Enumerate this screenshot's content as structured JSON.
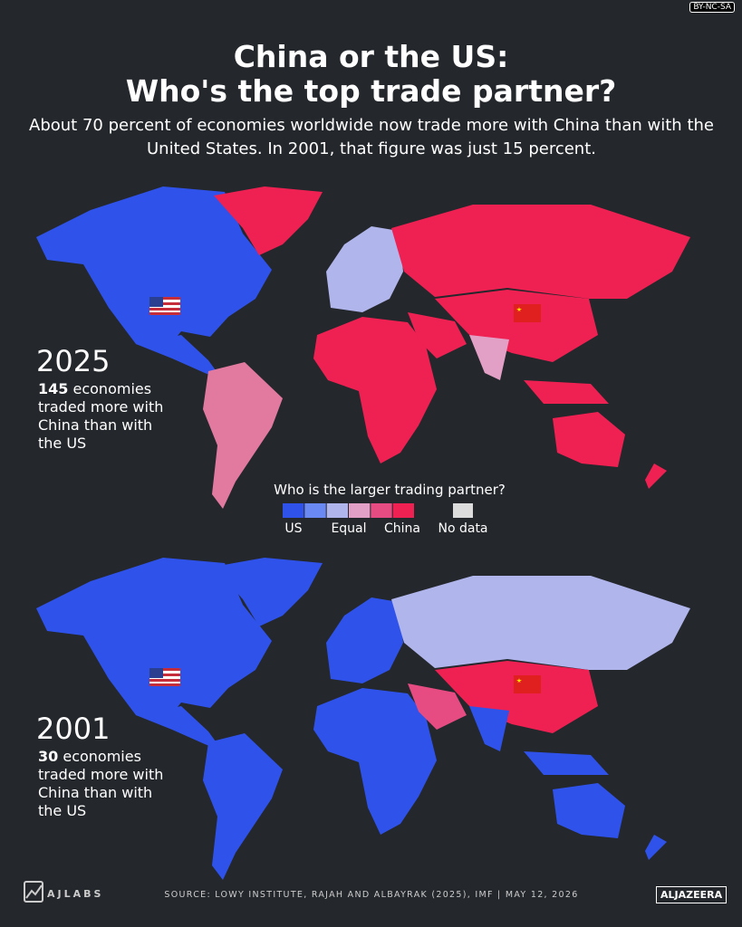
{
  "license": "BY-NC-SA",
  "header": {
    "title_line1": "China or the US:",
    "title_line2": "Who's the top trade partner?",
    "subtitle": "About 70 percent of economies worldwide now trade more with China than with the United States. In 2001, that figure was just 15 percent."
  },
  "maps": [
    {
      "year": "2025",
      "count": "145",
      "caption": "economies traded more with China than with the US"
    },
    {
      "year": "2001",
      "count": "30",
      "caption": "economies traded more with China than with the US"
    }
  ],
  "legend": {
    "title": "Who is the larger trading partner?",
    "labels": [
      "US",
      "Equal",
      "China",
      "No data"
    ],
    "colors": [
      "#2f53ea",
      "#6a89f2",
      "#b0b5ec",
      "#e2a0c6",
      "#e64b82",
      "#ee2152"
    ],
    "no_data_color": "#dcdcdc"
  },
  "footer": {
    "brand": "AJLABS",
    "source": "SOURCE: LOWY INSTITUTE, RAJAH AND ALBAYRAK (2025), IMF  |  MAY 12, 2026",
    "logo": "ALJAZEERA"
  }
}
